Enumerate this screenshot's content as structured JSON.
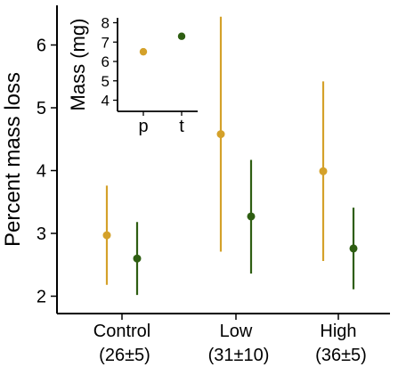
{
  "chart_data": [
    {
      "type": "scatter",
      "subtype": "point-with-error-bars",
      "ylabel": "Percent mass loss",
      "ylim": [
        1.8,
        6.6
      ],
      "yticks": [
        "2",
        "3",
        "4",
        "5",
        "6"
      ],
      "categories": [
        {
          "label": "Control",
          "sub": "(26±5)"
        },
        {
          "label": "Low",
          "sub": "(31±10)"
        },
        {
          "label": "High",
          "sub": "(36±5)"
        }
      ],
      "series": [
        {
          "color": "#d4a12a",
          "points": [
            {
              "y": 2.97,
              "low": 2.18,
              "high": 3.76
            },
            {
              "y": 4.58,
              "low": 2.71,
              "high": 6.45
            },
            {
              "y": 3.99,
              "low": 2.56,
              "high": 5.42
            }
          ]
        },
        {
          "color": "#2e5e12",
          "points": [
            {
              "y": 2.6,
              "low": 2.02,
              "high": 3.18
            },
            {
              "y": 3.27,
              "low": 2.36,
              "high": 4.17
            },
            {
              "y": 2.76,
              "low": 2.11,
              "high": 3.41
            }
          ]
        }
      ],
      "grid": false,
      "legend": "none"
    },
    {
      "type": "scatter",
      "role": "inset",
      "ylabel": "Mass (mg)",
      "ylim": [
        3.8,
        8.3
      ],
      "yticks": [
        "4",
        "5",
        "6",
        "7",
        "8"
      ],
      "categories": [
        "p",
        "t"
      ],
      "points": [
        {
          "category": "p",
          "y": 6.5,
          "color": "#d4a12a"
        },
        {
          "category": "t",
          "y": 7.3,
          "color": "#2e5e12"
        }
      ],
      "grid": false
    }
  ]
}
